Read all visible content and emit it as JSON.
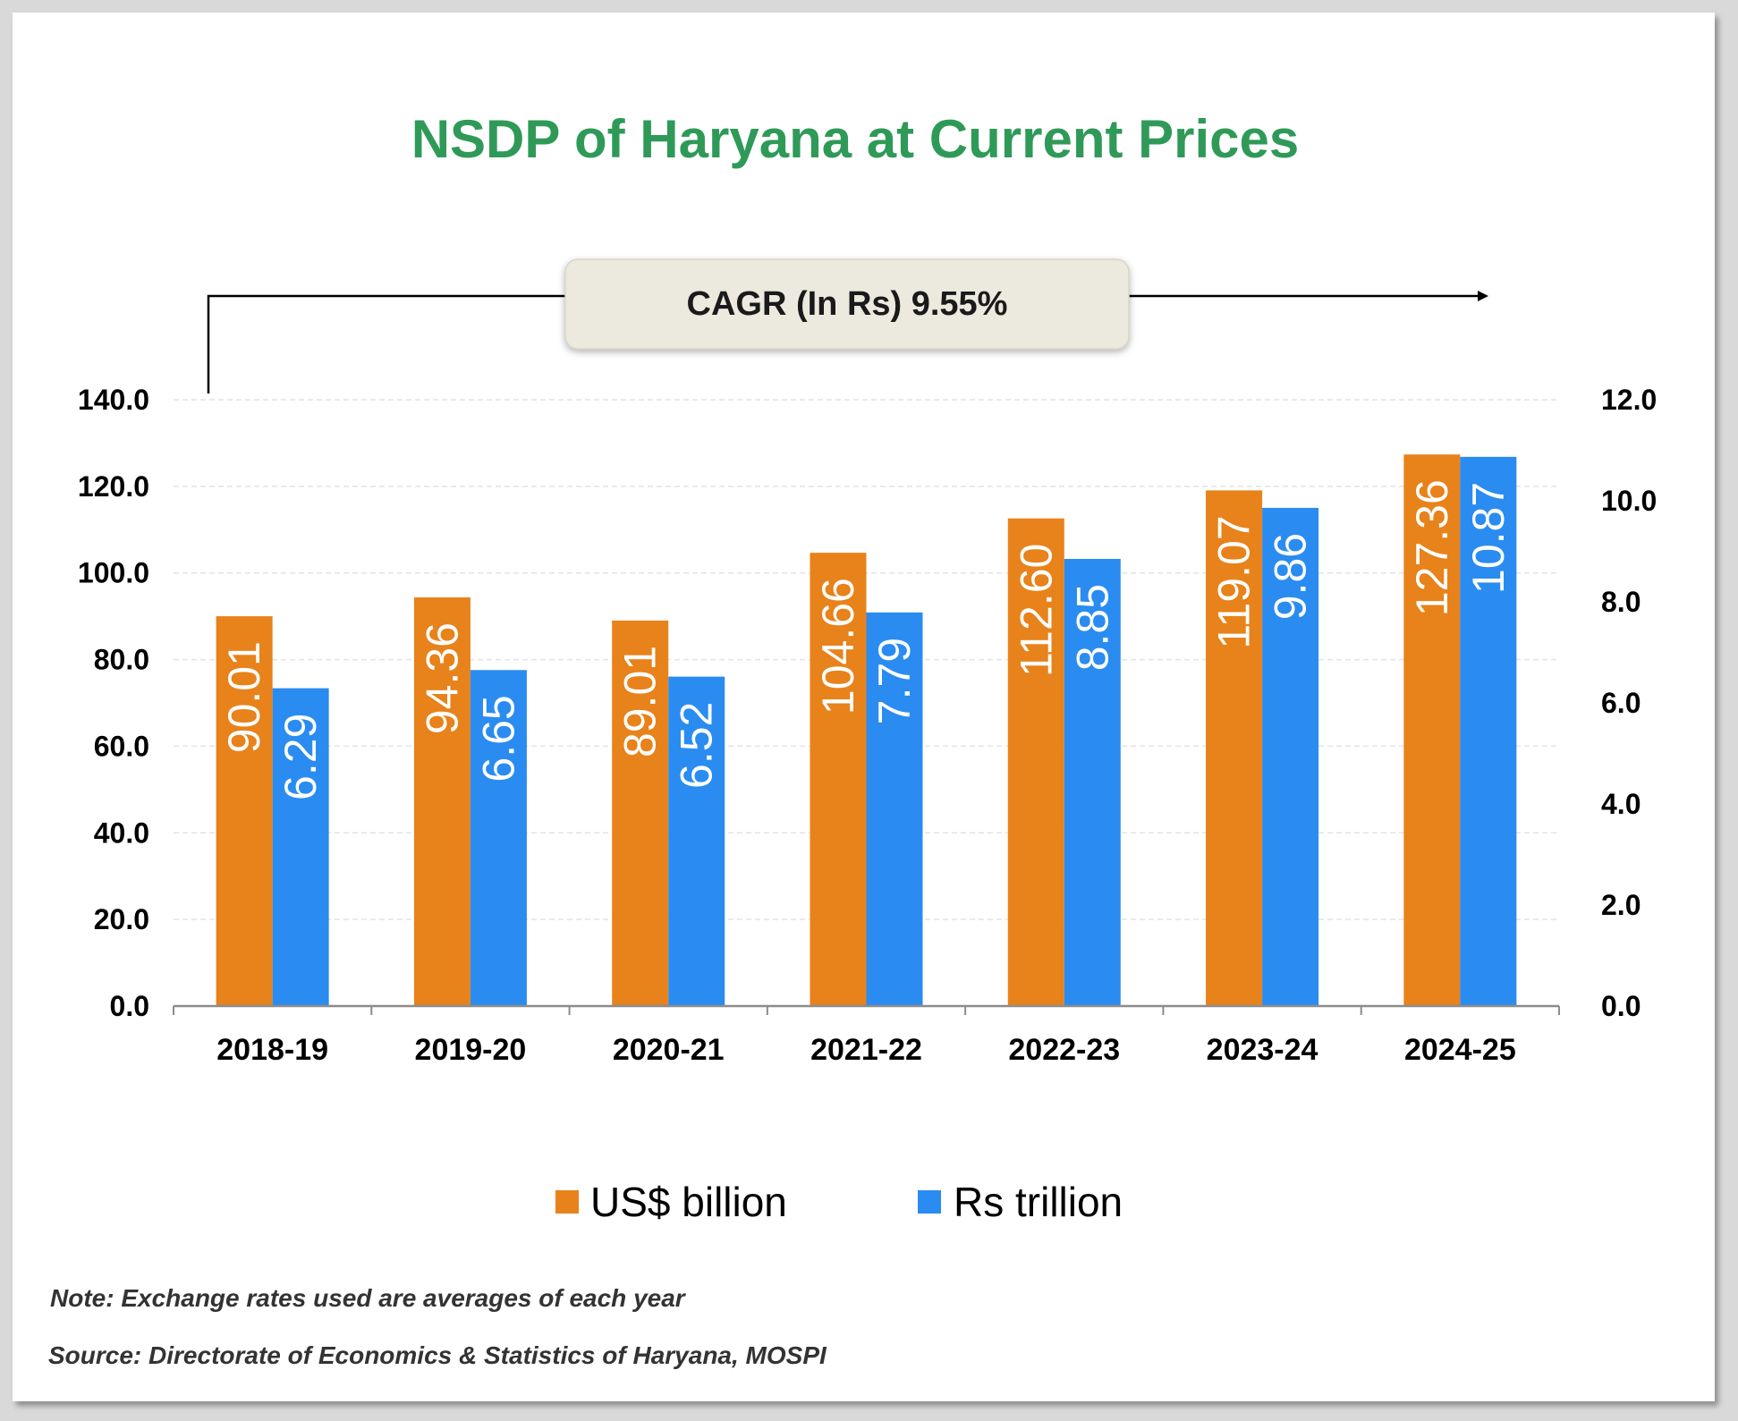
{
  "chart_data": {
    "type": "bar",
    "title": "NSDP of Haryana at Current Prices",
    "categories": [
      "2018-19",
      "2019-20",
      "2020-21",
      "2021-22",
      "2022-23",
      "2023-24",
      "2024-25"
    ],
    "series": [
      {
        "name": "US$ billion",
        "axis": "left",
        "color": "#e8821a",
        "values": [
          90.01,
          94.36,
          89.01,
          104.66,
          112.6,
          119.07,
          127.36
        ],
        "labels": [
          "90.01",
          "94.36",
          "89.01",
          "104.66",
          "112.60",
          "119.07",
          "127.36"
        ]
      },
      {
        "name": "Rs trillion",
        "axis": "right",
        "color": "#2a8cf0",
        "values": [
          6.29,
          6.65,
          6.52,
          7.79,
          8.85,
          9.86,
          10.87
        ],
        "labels": [
          "6.29",
          "6.65",
          "6.52",
          "7.79",
          "8.85",
          "9.86",
          "10.87"
        ]
      }
    ],
    "left_axis": {
      "ylim": [
        0,
        140
      ],
      "ticks": [
        0,
        20,
        40,
        60,
        80,
        100,
        120,
        140
      ],
      "tick_labels": [
        "0.0",
        "20.0",
        "40.0",
        "60.0",
        "80.0",
        "100.0",
        "120.0",
        "140.0"
      ]
    },
    "right_axis": {
      "ylim": [
        0,
        12
      ],
      "ticks": [
        0,
        2,
        4,
        6,
        8,
        10,
        12
      ],
      "tick_labels": [
        "0.0",
        "2.0",
        "4.0",
        "6.0",
        "8.0",
        "10.0",
        "12.0"
      ]
    },
    "grid": true,
    "legend_position": "bottom",
    "annotation": "CAGR (In Rs) 9.55%"
  },
  "notes": {
    "note": "Note: Exchange rates used are averages of each year",
    "source": "Source: Directorate of Economics & Statistics of Haryana, MOSPI"
  },
  "colors": {
    "title": "#2f9a58",
    "usd": "#e8821a",
    "rs": "#2a8cf0",
    "cagr_box": "#ece9df"
  }
}
